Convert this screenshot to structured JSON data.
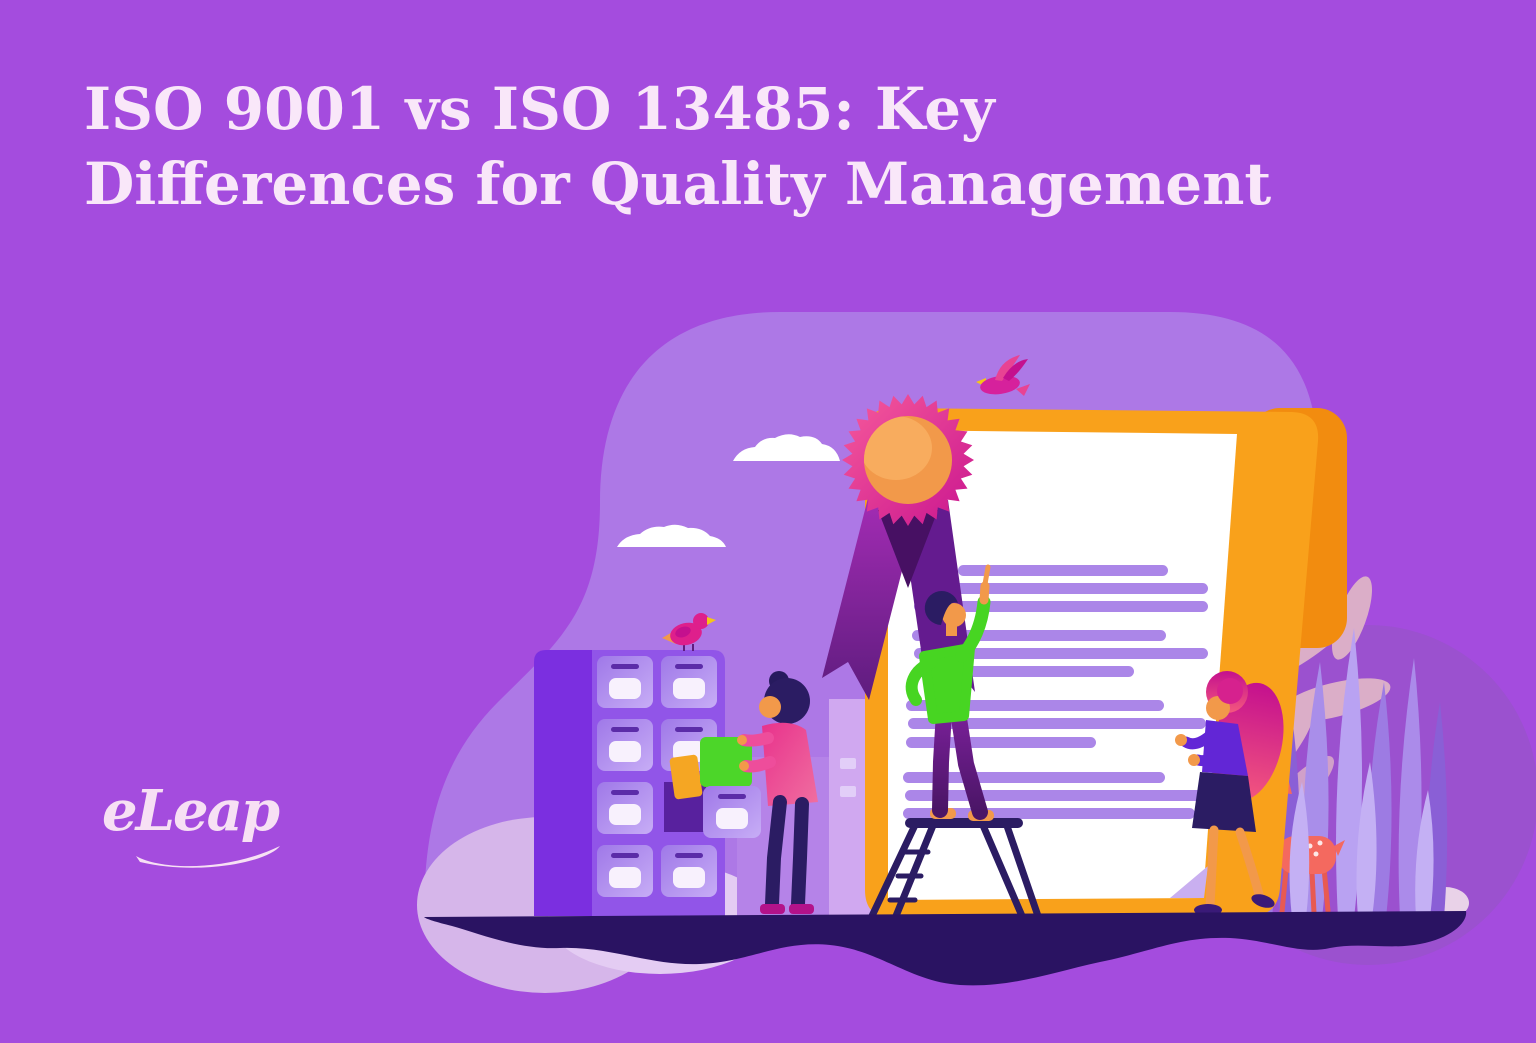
{
  "page": {
    "background_color": "#A44CDE"
  },
  "header": {
    "title_line1": "ISO 9001 vs ISO 13485: Key",
    "title_line2": "Differences for Quality Management",
    "title_color": "#F9E7F9"
  },
  "logo": {
    "text": "eLeap",
    "color": "#F7E0F4"
  },
  "illustration": {
    "description": "Flat illustration: large certificate with award rosette, man on step ladder pointing at document lines, woman filing folders at a cabinet, woman presenting at right, deer, grass, clouds and birds",
    "palette": {
      "background": "#A44CDE",
      "backdrop_blob": "#AD78E6",
      "backdrop_circle": "#9B51CF",
      "ground": "#2A1362",
      "cloud": "#FFFFFF",
      "certificate_border": "#F9A11B",
      "certificate_fold": "#F28C0F",
      "certificate_paper": "#FFFFFF",
      "certificate_text_lines": "#AB86E8",
      "corner_curl": "#C9AFF0",
      "rosette_ring": "#E8309A",
      "rosette_center": "#F2994A",
      "rosette_highlight": "#F8AC5E",
      "ribbon_left": "#93269E",
      "ribbon_right": "#641B8F",
      "ribbon_notch": "#471063",
      "ladder": "#2B1C63",
      "sweater_green": "#47D522",
      "pants_purple": "#5E1F86",
      "skin": "#F2994A",
      "hair_dark": "#2B1C63",
      "cabinet_side": "#7B2FE0",
      "cabinet_body": "#9155E8",
      "drawer_handle": "#5B2CA8",
      "drawer_label": "#F8F1FD",
      "open_drawer_box": "#58219E",
      "folder_green": "#4CD629",
      "folder_orange": "#F5A623",
      "blouse_pink": "#E8328C",
      "shoes_magenta": "#B3128A",
      "building_left": "#B583E8",
      "building_right": "#D0A8F0",
      "window": "#E2CEF8",
      "mound_pink": "#D6B6EA",
      "mound_light": "#E4CCF3",
      "top_purple": "#6226D6",
      "skirt_navy": "#2B1C63",
      "hair_magenta": "#D6218E",
      "deer_coral": "#F4695F",
      "grass_dark": "#8A5FD6",
      "grass_mid": "#9D7BE3",
      "grass_light": "#B9A2F2",
      "grass_front": "#C4B0F4",
      "leaves_pink": "#DBAEC8",
      "bird_pink": "#DE1F8C",
      "beak_yellow": "#F5C518"
    }
  }
}
